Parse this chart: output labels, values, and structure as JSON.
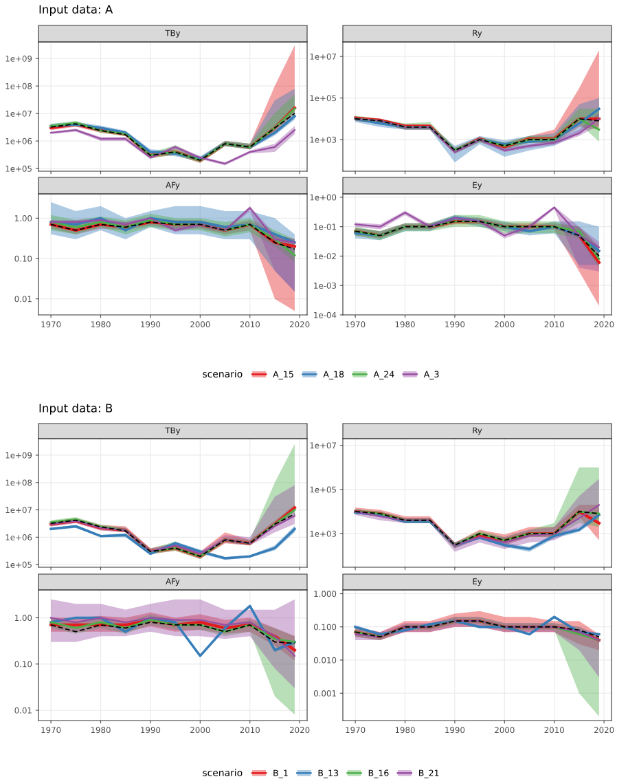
{
  "chart_data": [
    {
      "type": "line",
      "title": "TBy",
      "annotations": [
        "Input data: A"
      ],
      "legend": "bottom",
      "legend_title": "scenario",
      "log": "y",
      "grid": true,
      "tick_labels": "y",
      "xlim": [
        1967.5,
        2021.5
      ],
      "xticks": [
        1970,
        1980,
        1990,
        2000,
        2010,
        2020
      ],
      "ylim": [
        80000,
        4000000000
      ],
      "yticks": [
        {
          "value": 100000,
          "label": "1e+05"
        },
        {
          "value": 1000000,
          "label": "1e+06"
        },
        {
          "value": 10000000,
          "label": "1e+07"
        },
        {
          "value": 100000000,
          "label": "1e+08"
        },
        {
          "value": 1000000000,
          "label": "1e+09"
        }
      ],
      "x": [
        1970,
        1975,
        1980,
        1985,
        1990,
        1995,
        2000,
        2005,
        2010,
        2015,
        2019
      ],
      "series": [
        {
          "name": "A_15",
          "color": "#e41a1c",
          "values": [
            3000000.0,
            4000000.0,
            2500000.0,
            1800000.0,
            300000.0,
            400000.0,
            200000.0,
            800000.0,
            600000.0,
            3000000.0,
            16000000.0
          ],
          "lower": [
            2500000.0,
            3300000.0,
            2000000.0,
            1500000.0,
            240000.0,
            320000.0,
            160000.0,
            650000.0,
            500000.0,
            2000000.0,
            10000000.0
          ],
          "upper": [
            3600000.0,
            5000000.0,
            3000000.0,
            2200000.0,
            380000.0,
            500000.0,
            250000.0,
            1000000.0,
            800000.0,
            100000000.0,
            3000000000.0
          ]
        },
        {
          "name": "A_18",
          "color": "#377eb8",
          "values": [
            3500000.0,
            4000000.0,
            3000000.0,
            2000000.0,
            400000.0,
            350000.0,
            220000.0,
            800000.0,
            600000.0,
            2000000.0,
            8000000.0
          ],
          "lower": [
            3000000.0,
            3400000.0,
            2500000.0,
            1600000.0,
            320000.0,
            280000.0,
            180000.0,
            650000.0,
            500000.0,
            1600000.0,
            6000000.0
          ],
          "upper": [
            4200000.0,
            5000000.0,
            3600000.0,
            2400000.0,
            500000.0,
            450000.0,
            280000.0,
            1000000.0,
            800000.0,
            30000000.0,
            80000000.0
          ]
        },
        {
          "name": "A_24",
          "color": "#4daf4a",
          "values": [
            3500000.0,
            4500000.0,
            2400000.0,
            1800000.0,
            300000.0,
            400000.0,
            200000.0,
            800000.0,
            600000.0,
            3000000.0,
            15000000.0
          ],
          "lower": [
            3000000.0,
            3800000.0,
            2000000.0,
            1500000.0,
            240000.0,
            320000.0,
            160000.0,
            650000.0,
            500000.0,
            2500000.0,
            10000000.0
          ],
          "upper": [
            4200000.0,
            5400000.0,
            2900000.0,
            2200000.0,
            380000.0,
            700000.0,
            250000.0,
            1000000.0,
            800000.0,
            10000000.0,
            50000000.0
          ]
        },
        {
          "name": "A_3",
          "color": "#984ea3",
          "values": [
            2000000.0,
            2500000.0,
            1200000.0,
            1200000.0,
            250000.0,
            600000.0,
            250000.0,
            150000.0,
            400000.0,
            600000.0,
            2500000.0
          ],
          "lower": [
            1800000.0,
            2200000.0,
            1000000.0,
            1000000.0,
            220000.0,
            500000.0,
            220000.0,
            130000.0,
            350000.0,
            400000.0,
            1800000.0
          ],
          "upper": [
            2200000.0,
            2800000.0,
            1400000.0,
            1400000.0,
            280000.0,
            700000.0,
            280000.0,
            170000.0,
            450000.0,
            800000.0,
            3500000.0
          ]
        },
        {
          "color": "#000000",
          "line_style": "dashed",
          "values": [
            3200000.0,
            4200000.0,
            2400000.0,
            1700000.0,
            300000.0,
            400000.0,
            200000.0,
            800000.0,
            600000.0,
            3000000.0,
            10000000.0
          ]
        }
      ]
    },
    {
      "type": "line",
      "title": "Ry",
      "log": "y",
      "grid": true,
      "tick_labels": "y",
      "xlim": [
        1967.5,
        2021.5
      ],
      "xticks": [
        1970,
        1980,
        1990,
        2000,
        2010,
        2020
      ],
      "ylim": [
        30,
        50000000
      ],
      "yticks": [
        {
          "value": 1000,
          "label": "1e+03"
        },
        {
          "value": 100000,
          "label": "1e+05"
        },
        {
          "value": 10000000,
          "label": "1e+07"
        }
      ],
      "x": [
        1970,
        1975,
        1980,
        1985,
        1990,
        1995,
        2000,
        2005,
        2010,
        2015,
        2019
      ],
      "series": [
        {
          "color": "#e41a1c",
          "values": [
            11000.0,
            8500.0,
            4500.0,
            4500.0,
            280,
            1100.0,
            450,
            1100.0,
            1100.0,
            10000.0,
            10000.0
          ],
          "lower": [
            8000.0,
            6000.0,
            3000.0,
            3000.0,
            220,
            750,
            350,
            700,
            700,
            4000.0,
            3000.0
          ],
          "upper": [
            13000.0,
            10000.0,
            5000.0,
            5000.0,
            400,
            1300.0,
            700,
            1500.0,
            3000.0,
            300000.0,
            20000000.0
          ]
        },
        {
          "color": "#377eb8",
          "values": [
            10000.0,
            6000.0,
            4000.0,
            4000.0,
            300,
            1000.0,
            600,
            800,
            1000.0,
            6000.0,
            30000.0
          ],
          "lower": [
            7000.0,
            4000.0,
            3000.0,
            3000.0,
            80,
            600,
            150,
            300,
            500,
            2000.0,
            10000.0
          ],
          "upper": [
            13000.0,
            8000.0,
            5000.0,
            5000.0,
            500,
            1500.0,
            900,
            1500.0,
            2000.0,
            50000.0,
            100000.0
          ]
        },
        {
          "color": "#4daf4a",
          "values": [
            10000.0,
            8000.0,
            4000.0,
            4000.0,
            300,
            1000.0,
            500,
            1000.0,
            1000.0,
            10000.0,
            3000.0
          ],
          "lower": [
            8000.0,
            6000.0,
            3000.0,
            3000.0,
            220,
            750,
            350,
            700,
            700,
            6000.0,
            800
          ],
          "upper": [
            14000.0,
            10000.0,
            6000.0,
            7000.0,
            400,
            1300.0,
            700,
            1500.0,
            1500.0,
            30000.0,
            30000.0
          ]
        },
        {
          "color": "#984ea3",
          "values": [
            10000.0,
            8000.0,
            4000.0,
            4000.0,
            250,
            1000.0,
            300,
            500,
            700,
            2000.0,
            10000.0
          ],
          "lower": [
            8000.0,
            6000.0,
            3000.0,
            3000.0,
            200,
            800,
            250,
            400,
            550,
            1500.0,
            5000.0
          ],
          "upper": [
            12000.0,
            10000.0,
            5000.0,
            5000.0,
            300,
            1200.0,
            400,
            600,
            900,
            3000.0,
            20000.0
          ]
        },
        {
          "color": "#000000",
          "line_style": "dashed",
          "values": [
            10000.0,
            8000.0,
            4000.0,
            4000.0,
            300,
            1000.0,
            500,
            1000.0,
            1000.0,
            10000.0,
            8000.0
          ]
        }
      ]
    },
    {
      "type": "line",
      "title": "AFy",
      "log": "y",
      "grid": true,
      "xlim": [
        1967.5,
        2021.5
      ],
      "xticks": [
        1970,
        1980,
        1990,
        2000,
        2010,
        2020
      ],
      "ylim": [
        0.004,
        4
      ],
      "yticks": [
        {
          "value": 0.01,
          "label": "0.01"
        },
        {
          "value": 0.1,
          "label": "0.10"
        },
        {
          "value": 1,
          "label": "1.00"
        }
      ],
      "x": [
        1970,
        1975,
        1980,
        1985,
        1990,
        1995,
        2000,
        2005,
        2010,
        2015,
        2019
      ],
      "series": [
        {
          "color": "#e41a1c",
          "values": [
            0.7,
            0.5,
            0.7,
            0.6,
            0.8,
            0.7,
            0.7,
            0.5,
            0.7,
            0.25,
            0.2
          ],
          "lower": [
            0.55,
            0.4,
            0.55,
            0.5,
            0.65,
            0.55,
            0.55,
            0.4,
            0.5,
            0.01,
            0.005
          ],
          "upper": [
            0.9,
            0.65,
            0.9,
            0.8,
            1,
            0.9,
            0.9,
            0.65,
            0.9,
            0.4,
            0.3
          ]
        },
        {
          "color": "#377eb8",
          "values": [
            0.8,
            0.7,
            1,
            0.5,
            1,
            0.8,
            0.8,
            0.6,
            0.7,
            0.4,
            0.25
          ],
          "lower": [
            0.4,
            0.3,
            0.5,
            0.3,
            0.6,
            0.4,
            0.4,
            0.3,
            0.3,
            0.05,
            0.015
          ],
          "upper": [
            2.5,
            1.5,
            2,
            1,
            1.5,
            2,
            2,
            1.5,
            1.5,
            1,
            0.4
          ]
        },
        {
          "color": "#4daf4a",
          "values": [
            0.8,
            0.6,
            0.8,
            0.6,
            0.9,
            0.7,
            0.7,
            0.5,
            0.7,
            0.3,
            0.12
          ],
          "lower": [
            0.5,
            0.4,
            0.6,
            0.4,
            0.6,
            0.5,
            0.5,
            0.35,
            0.45,
            0.2,
            0.08
          ],
          "upper": [
            1.2,
            0.9,
            1.1,
            0.9,
            1.3,
            1,
            1,
            0.8,
            1,
            0.5,
            0.3
          ]
        },
        {
          "color": "#984ea3",
          "values": [
            0.8,
            0.8,
            0.9,
            0.7,
            1,
            0.5,
            0.7,
            0.5,
            1.8,
            0.3,
            0.25
          ],
          "lower": [
            0.7,
            0.7,
            0.8,
            0.6,
            0.9,
            0.45,
            0.6,
            0.45,
            1.5,
            0.05,
            0.015
          ],
          "upper": [
            0.9,
            0.9,
            1,
            0.8,
            1.1,
            0.6,
            0.8,
            0.55,
            2,
            0.4,
            0.3
          ]
        },
        {
          "color": "#000000",
          "line_style": "dashed",
          "values": [
            0.7,
            0.5,
            0.7,
            0.6,
            0.8,
            0.7,
            0.7,
            0.5,
            0.7,
            0.25,
            0.17
          ]
        }
      ]
    },
    {
      "type": "line",
      "title": "Ey",
      "log": "y",
      "grid": true,
      "xlim": [
        1967.5,
        2021.5
      ],
      "xticks": [
        1970,
        1980,
        1990,
        2000,
        2010,
        2020
      ],
      "ylim": [
        0.0001,
        1.3
      ],
      "yticks": [
        {
          "value": 0.0001,
          "label": "1e-04"
        },
        {
          "value": 0.001,
          "label": "1e-03"
        },
        {
          "value": 0.01,
          "label": "1e-02"
        },
        {
          "value": 0.1,
          "label": "1e-01"
        },
        {
          "value": 1,
          "label": "1e+00"
        }
      ],
      "x": [
        1970,
        1975,
        1980,
        1985,
        1990,
        1995,
        2000,
        2005,
        2010,
        2015,
        2019
      ],
      "series": [
        {
          "color": "#e41a1c",
          "values": [
            0.07,
            0.05,
            0.1,
            0.1,
            0.15,
            0.15,
            0.1,
            0.1,
            0.1,
            0.05,
            0.006
          ],
          "lower": [
            0.05,
            0.04,
            0.08,
            0.08,
            0.12,
            0.12,
            0.08,
            0.08,
            0.08,
            0.003,
            0.0002
          ],
          "upper": [
            0.09,
            0.07,
            0.13,
            0.13,
            0.2,
            0.2,
            0.13,
            0.13,
            0.13,
            0.1,
            0.02
          ]
        },
        {
          "color": "#377eb8",
          "values": [
            0.06,
            0.05,
            0.1,
            0.1,
            0.2,
            0.15,
            0.1,
            0.07,
            0.1,
            0.05,
            0.015
          ],
          "lower": [
            0.04,
            0.035,
            0.07,
            0.07,
            0.15,
            0.1,
            0.07,
            0.05,
            0.06,
            0.005,
            0.005
          ],
          "upper": [
            0.09,
            0.07,
            0.13,
            0.13,
            0.25,
            0.2,
            0.15,
            0.1,
            0.15,
            0.15,
            0.1
          ]
        },
        {
          "color": "#4daf4a",
          "values": [
            0.07,
            0.05,
            0.1,
            0.1,
            0.15,
            0.15,
            0.1,
            0.1,
            0.1,
            0.07,
            0.008
          ],
          "lower": [
            0.05,
            0.035,
            0.07,
            0.07,
            0.1,
            0.1,
            0.06,
            0.06,
            0.06,
            0.04,
            0.004
          ],
          "upper": [
            0.1,
            0.07,
            0.13,
            0.13,
            0.25,
            0.25,
            0.15,
            0.15,
            0.15,
            0.1,
            0.02
          ]
        },
        {
          "color": "#984ea3",
          "values": [
            0.12,
            0.1,
            0.3,
            0.1,
            0.2,
            0.15,
            0.05,
            0.1,
            0.45,
            0.05,
            0.02
          ],
          "lower": [
            0.1,
            0.08,
            0.25,
            0.08,
            0.17,
            0.13,
            0.04,
            0.08,
            0.4,
            0.004,
            0.003
          ],
          "upper": [
            0.14,
            0.12,
            0.35,
            0.12,
            0.23,
            0.18,
            0.06,
            0.12,
            0.5,
            0.1,
            0.03
          ]
        },
        {
          "color": "#000000",
          "line_style": "dashed",
          "values": [
            0.07,
            0.05,
            0.1,
            0.1,
            0.15,
            0.15,
            0.1,
            0.1,
            0.1,
            0.05,
            0.01
          ]
        }
      ]
    },
    {
      "type": "line",
      "title": "TBy",
      "annotations": [
        "Input data: B"
      ],
      "legend": "bottom",
      "legend_title": "scenario",
      "log": "y",
      "grid": true,
      "tick_labels": "y",
      "xlim": [
        1967.5,
        2021.5
      ],
      "xticks": [
        1970,
        1980,
        1990,
        2000,
        2010,
        2020
      ],
      "ylim": [
        80000,
        4000000000
      ],
      "yticks": [
        {
          "value": 100000,
          "label": "1e+05"
        },
        {
          "value": 1000000,
          "label": "1e+06"
        },
        {
          "value": 10000000,
          "label": "1e+07"
        },
        {
          "value": 100000000,
          "label": "1e+08"
        },
        {
          "value": 1000000000,
          "label": "1e+09"
        }
      ],
      "x": [
        1970,
        1975,
        1980,
        1985,
        1990,
        1995,
        2000,
        2005,
        2010,
        2015,
        2019
      ],
      "series": [
        {
          "name": "B_1",
          "color": "#e41a1c",
          "values": [
            3000000.0,
            4000000.0,
            2200000.0,
            1800000.0,
            300000.0,
            400000.0,
            200000.0,
            800000.0,
            600000.0,
            3000000.0,
            12000000.0
          ],
          "lower": [
            2500000.0,
            3300000.0,
            1800000.0,
            1500000.0,
            240000.0,
            320000.0,
            160000.0,
            600000.0,
            500000.0,
            2400000.0,
            9000000.0
          ],
          "upper": [
            3800000.0,
            5000000.0,
            2800000.0,
            2500000.0,
            400000.0,
            600000.0,
            300000.0,
            1500000.0,
            800000.0,
            4000000.0,
            15000000.0
          ]
        },
        {
          "name": "B_13",
          "color": "#377eb8",
          "values": [
            2000000.0,
            2500000.0,
            1100000.0,
            1200000.0,
            250000.0,
            600000.0,
            300000.0,
            170000.0,
            200000.0,
            400000.0,
            2000000.0
          ],
          "lower": [
            1800000.0,
            2200000.0,
            1000000.0,
            1000000.0,
            220000.0,
            500000.0,
            250000.0,
            150000.0,
            180000.0,
            330000.0,
            1500000.0
          ],
          "upper": [
            2200000.0,
            2800000.0,
            1200000.0,
            1400000.0,
            280000.0,
            700000.0,
            350000.0,
            190000.0,
            220000.0,
            500000.0,
            2600000.0
          ]
        },
        {
          "name": "B_16",
          "color": "#4daf4a",
          "values": [
            3500000.0,
            4500000.0,
            2400000.0,
            1800000.0,
            300000.0,
            400000.0,
            200000.0,
            800000.0,
            600000.0,
            3000000.0,
            10000000.0
          ],
          "lower": [
            3000000.0,
            3800000.0,
            2000000.0,
            1500000.0,
            240000.0,
            320000.0,
            160000.0,
            650000.0,
            500000.0,
            2500000.0,
            6000000.0
          ],
          "upper": [
            4200000.0,
            5400000.0,
            2900000.0,
            2200000.0,
            380000.0,
            700000.0,
            250000.0,
            1000000.0,
            800000.0,
            100000000.0,
            2500000000.0
          ]
        },
        {
          "name": "B_21",
          "color": "#984ea3",
          "values": [
            3000000.0,
            4000000.0,
            2200000.0,
            1800000.0,
            300000.0,
            500000.0,
            250000.0,
            800000.0,
            600000.0,
            2500000.0,
            6000000.0
          ],
          "lower": [
            2500000.0,
            3300000.0,
            1800000.0,
            1500000.0,
            240000.0,
            400000.0,
            200000.0,
            650000.0,
            500000.0,
            1500000.0,
            3000000.0
          ],
          "upper": [
            3600000.0,
            4800000.0,
            2600000.0,
            2200000.0,
            380000.0,
            600000.0,
            300000.0,
            1200000.0,
            1000000.0,
            30000000.0,
            80000000.0
          ]
        },
        {
          "color": "#000000",
          "line_style": "dashed",
          "values": [
            3200000.0,
            4200000.0,
            2400000.0,
            1700000.0,
            300000.0,
            400000.0,
            200000.0,
            800000.0,
            600000.0,
            3000000.0,
            7000000.0
          ]
        }
      ]
    },
    {
      "type": "line",
      "title": "Ry",
      "log": "y",
      "grid": true,
      "tick_labels": "y",
      "xlim": [
        1967.5,
        2021.5
      ],
      "xticks": [
        1970,
        1980,
        1990,
        2000,
        2010,
        2020
      ],
      "ylim": [
        30,
        20000000
      ],
      "yticks": [
        {
          "value": 1000,
          "label": "1e+03"
        },
        {
          "value": 100000,
          "label": "1e+05"
        },
        {
          "value": 10000000,
          "label": "1e+07"
        }
      ],
      "x": [
        1970,
        1975,
        1980,
        1985,
        1990,
        1995,
        2000,
        2005,
        2010,
        2015,
        2019
      ],
      "series": [
        {
          "color": "#e41a1c",
          "values": [
            10000.0,
            8000.0,
            4000.0,
            4000.0,
            300,
            800,
            500,
            1000.0,
            1000.0,
            10000.0,
            3000.0
          ],
          "lower": [
            8000.0,
            6000.0,
            3000.0,
            3000.0,
            220,
            600,
            300,
            700,
            700,
            6000.0,
            500
          ],
          "upper": [
            15000.0,
            12000.0,
            6000.0,
            6000.0,
            400,
            1500.0,
            900,
            2000.0,
            2000.0,
            20000.0,
            20000.0
          ]
        },
        {
          "color": "#377eb8",
          "values": [
            9000.0,
            7000.0,
            3500.0,
            3500.0,
            300,
            650,
            300,
            200,
            800,
            1500.0,
            7000.0
          ],
          "lower": [
            8000.0,
            6000.0,
            3000.0,
            3000.0,
            220,
            600,
            250,
            150,
            600,
            1200.0,
            5000.0
          ],
          "upper": [
            12000.0,
            10000.0,
            5000.0,
            5000.0,
            400,
            1000.0,
            400,
            250,
            1000.0,
            2000.0,
            9000.0
          ]
        },
        {
          "color": "#4daf4a",
          "values": [
            10000.0,
            8000.0,
            4000.0,
            4000.0,
            300,
            1000.0,
            500,
            1000.0,
            1000.0,
            10000.0,
            8000.0
          ],
          "lower": [
            8000.0,
            6000.0,
            3000.0,
            3000.0,
            220,
            750,
            350,
            700,
            700,
            3000.0,
            2000.0
          ],
          "upper": [
            13000.0,
            10000.0,
            5000.0,
            5000.0,
            400,
            1300.0,
            700,
            1500.0,
            3000.0,
            1000000.0,
            1000000.0
          ]
        },
        {
          "color": "#984ea3",
          "values": [
            10000.0,
            6000.0,
            4000.0,
            4000.0,
            300,
            700,
            400,
            800,
            1000.0,
            5000.0,
            20000.0
          ],
          "lower": [
            7000.0,
            4000.0,
            3000.0,
            3000.0,
            150,
            400,
            200,
            400,
            500,
            2000.0,
            6000.0
          ],
          "upper": [
            13000.0,
            8000.0,
            5000.0,
            5000.0,
            400,
            1000.0,
            700,
            1500.0,
            2000.0,
            50000.0,
            300000.0
          ]
        },
        {
          "color": "#000000",
          "line_style": "dashed",
          "values": [
            10000.0,
            8000.0,
            4000.0,
            4000.0,
            300,
            1000.0,
            500,
            1000.0,
            1000.0,
            10000.0,
            8000.0
          ]
        }
      ]
    },
    {
      "type": "line",
      "title": "AFy",
      "log": "y",
      "grid": true,
      "xlim": [
        1967.5,
        2021.5
      ],
      "xticks": [
        1970,
        1980,
        1990,
        2000,
        2010,
        2020
      ],
      "ylim": [
        0.006,
        4
      ],
      "yticks": [
        {
          "value": 0.01,
          "label": "0.01"
        },
        {
          "value": 0.1,
          "label": "0.10"
        },
        {
          "value": 1,
          "label": "1.00"
        }
      ],
      "x": [
        1970,
        1975,
        1980,
        1985,
        1990,
        1995,
        2000,
        2005,
        2010,
        2015,
        2019
      ],
      "series": [
        {
          "color": "#e41a1c",
          "values": [
            0.7,
            0.7,
            0.7,
            0.7,
            0.9,
            0.7,
            0.8,
            0.6,
            0.7,
            0.4,
            0.2
          ],
          "lower": [
            0.5,
            0.5,
            0.5,
            0.5,
            0.65,
            0.5,
            0.55,
            0.45,
            0.5,
            0.25,
            0.12
          ],
          "upper": [
            1,
            1,
            1.1,
            1,
            1.3,
            1,
            1.2,
            0.9,
            1,
            0.6,
            0.4
          ]
        },
        {
          "color": "#377eb8",
          "values": [
            0.8,
            1,
            1,
            0.5,
            1,
            0.8,
            0.15,
            0.6,
            1.8,
            0.2,
            0.3
          ],
          "lower": [
            0.75,
            0.95,
            0.95,
            0.45,
            0.95,
            0.75,
            0.14,
            0.55,
            1.7,
            0.18,
            0.27
          ],
          "upper": [
            0.85,
            1.05,
            1.05,
            0.55,
            1.05,
            0.85,
            0.16,
            0.65,
            1.9,
            0.22,
            0.33
          ]
        },
        {
          "color": "#4daf4a",
          "values": [
            0.8,
            0.6,
            0.8,
            0.6,
            0.9,
            0.7,
            0.7,
            0.5,
            0.7,
            0.35,
            0.3
          ],
          "lower": [
            0.6,
            0.45,
            0.6,
            0.45,
            0.7,
            0.55,
            0.55,
            0.4,
            0.5,
            0.02,
            0.008
          ],
          "upper": [
            1,
            0.8,
            1,
            0.8,
            1.2,
            0.9,
            0.9,
            0.7,
            0.9,
            0.6,
            0.4
          ]
        },
        {
          "color": "#984ea3",
          "values": [
            1,
            0.8,
            1,
            0.8,
            1,
            0.9,
            0.9,
            0.7,
            0.8,
            0.4,
            0.15
          ],
          "lower": [
            0.3,
            0.3,
            0.4,
            0.4,
            0.5,
            0.4,
            0.4,
            0.35,
            0.4,
            0.08,
            0.03
          ],
          "upper": [
            2.5,
            2,
            2,
            1.5,
            2,
            2.5,
            2.5,
            1.5,
            1.5,
            1.5,
            2.5
          ]
        },
        {
          "color": "#000000",
          "line_style": "dashed",
          "values": [
            0.7,
            0.5,
            0.7,
            0.6,
            0.8,
            0.7,
            0.7,
            0.5,
            0.7,
            0.3,
            0.28
          ]
        }
      ]
    },
    {
      "type": "line",
      "title": "Ey",
      "log": "y",
      "grid": true,
      "xlim": [
        1967.5,
        2021.5
      ],
      "xticks": [
        1970,
        1980,
        1990,
        2000,
        2010,
        2020
      ],
      "ylim": [
        0.00015,
        1.3
      ],
      "yticks": [
        {
          "value": 0.001,
          "label": "0.001"
        },
        {
          "value": 0.01,
          "label": "0.010"
        },
        {
          "value": 0.1,
          "label": "0.100"
        },
        {
          "value": 1,
          "label": "1.000"
        }
      ],
      "x": [
        1970,
        1975,
        1980,
        1985,
        1990,
        1995,
        2000,
        2005,
        2010,
        2015,
        2019
      ],
      "series": [
        {
          "color": "#e41a1c",
          "values": [
            0.07,
            0.05,
            0.1,
            0.1,
            0.15,
            0.15,
            0.1,
            0.1,
            0.1,
            0.07,
            0.04
          ],
          "lower": [
            0.05,
            0.04,
            0.07,
            0.07,
            0.1,
            0.1,
            0.07,
            0.07,
            0.07,
            0.03,
            0.02
          ],
          "upper": [
            0.1,
            0.07,
            0.15,
            0.15,
            0.25,
            0.3,
            0.2,
            0.2,
            0.15,
            0.15,
            0.06
          ]
        },
        {
          "color": "#377eb8",
          "values": [
            0.1,
            0.06,
            0.08,
            0.12,
            0.15,
            0.1,
            0.1,
            0.06,
            0.2,
            0.07,
            0.06
          ],
          "lower": [
            0.09,
            0.055,
            0.07,
            0.11,
            0.14,
            0.09,
            0.09,
            0.055,
            0.18,
            0.065,
            0.055
          ],
          "upper": [
            0.11,
            0.065,
            0.09,
            0.13,
            0.16,
            0.11,
            0.11,
            0.065,
            0.22,
            0.075,
            0.065
          ]
        },
        {
          "color": "#4daf4a",
          "values": [
            0.07,
            0.05,
            0.1,
            0.1,
            0.15,
            0.15,
            0.1,
            0.1,
            0.1,
            0.06,
            0.04
          ],
          "lower": [
            0.05,
            0.04,
            0.08,
            0.08,
            0.12,
            0.12,
            0.08,
            0.08,
            0.08,
            0.001,
            0.0002
          ],
          "upper": [
            0.09,
            0.06,
            0.12,
            0.12,
            0.2,
            0.2,
            0.13,
            0.13,
            0.13,
            0.1,
            0.05
          ]
        },
        {
          "color": "#984ea3",
          "values": [
            0.06,
            0.05,
            0.1,
            0.1,
            0.15,
            0.15,
            0.1,
            0.1,
            0.1,
            0.07,
            0.04
          ],
          "lower": [
            0.04,
            0.04,
            0.07,
            0.07,
            0.1,
            0.1,
            0.07,
            0.07,
            0.07,
            0.02,
            0.003
          ],
          "upper": [
            0.09,
            0.07,
            0.13,
            0.13,
            0.2,
            0.2,
            0.13,
            0.13,
            0.13,
            0.1,
            0.06
          ]
        },
        {
          "color": "#000000",
          "line_style": "dashed",
          "values": [
            0.07,
            0.05,
            0.1,
            0.1,
            0.15,
            0.15,
            0.1,
            0.1,
            0.1,
            0.08,
            0.05
          ]
        }
      ]
    }
  ]
}
